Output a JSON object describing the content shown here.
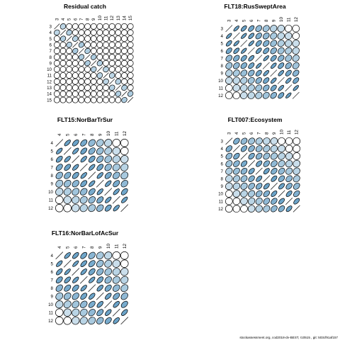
{
  "footer": "stockassessment.org, cod2018-dv-BEST, r10515 , git: 503cf91af157",
  "colors": {
    "fill": "#6ba3c8",
    "stroke": "#000000",
    "background": "#ffffff"
  },
  "chart_data": [
    {
      "type": "heatmap",
      "title": "Residual catch",
      "labels": [
        "3",
        "4",
        "5",
        "6",
        "7",
        "8",
        "9",
        "10",
        "11",
        "12",
        "13",
        "14",
        "15"
      ],
      "matrix": [
        [
          1.0,
          0.18,
          0.02,
          0.05,
          0.04,
          0.03,
          0.03,
          0.03,
          0.03,
          0.02,
          0.02,
          0.02,
          0.02
        ],
        [
          0.18,
          1.0,
          0.25,
          0.04,
          0.05,
          0.04,
          0.03,
          0.03,
          0.03,
          0.02,
          0.02,
          0.02,
          0.02
        ],
        [
          0.02,
          0.25,
          1.0,
          0.22,
          0.04,
          0.05,
          0.04,
          0.03,
          0.03,
          0.02,
          0.02,
          0.02,
          0.02
        ],
        [
          0.05,
          0.04,
          0.22,
          1.0,
          0.3,
          0.04,
          0.05,
          0.04,
          0.03,
          0.02,
          0.02,
          0.02,
          0.02
        ],
        [
          0.04,
          0.05,
          0.04,
          0.3,
          1.0,
          0.26,
          0.04,
          0.05,
          0.04,
          0.03,
          0.02,
          0.02,
          0.02
        ],
        [
          0.03,
          0.04,
          0.05,
          0.04,
          0.26,
          1.0,
          0.28,
          0.04,
          0.05,
          0.04,
          0.03,
          0.02,
          0.02
        ],
        [
          0.03,
          0.03,
          0.04,
          0.05,
          0.04,
          0.28,
          1.0,
          0.24,
          0.04,
          0.05,
          0.04,
          0.03,
          0.02
        ],
        [
          0.03,
          0.03,
          0.03,
          0.04,
          0.05,
          0.04,
          0.24,
          1.0,
          0.2,
          0.04,
          0.05,
          0.04,
          0.03
        ],
        [
          0.03,
          0.03,
          0.03,
          0.03,
          0.04,
          0.05,
          0.04,
          0.2,
          1.0,
          0.18,
          0.04,
          0.05,
          0.04
        ],
        [
          0.02,
          0.02,
          0.02,
          0.02,
          0.03,
          0.04,
          0.05,
          0.04,
          0.18,
          1.0,
          0.22,
          0.04,
          0.05
        ],
        [
          0.02,
          0.02,
          0.02,
          0.02,
          0.02,
          0.03,
          0.04,
          0.05,
          0.04,
          0.22,
          1.0,
          0.25,
          0.04
        ],
        [
          0.02,
          0.02,
          0.02,
          0.02,
          0.02,
          0.02,
          0.03,
          0.04,
          0.05,
          0.04,
          0.25,
          1.0,
          0.28
        ],
        [
          0.02,
          0.02,
          0.02,
          0.02,
          0.02,
          0.02,
          0.02,
          0.03,
          0.04,
          0.05,
          0.04,
          0.28,
          1.0
        ]
      ]
    },
    {
      "type": "heatmap",
      "title": "FLT18:RusSweptArea",
      "labels": [
        "3",
        "4",
        "5",
        "6",
        "7",
        "8",
        "9",
        "10",
        "11",
        "12"
      ],
      "matrix": [
        [
          1.0,
          0.85,
          0.75,
          0.65,
          0.45,
          0.35,
          0.2,
          0.1,
          0.05,
          0.0
        ],
        [
          0.85,
          1.0,
          0.85,
          0.75,
          0.55,
          0.45,
          0.3,
          0.15,
          0.1,
          0.05
        ],
        [
          0.75,
          0.85,
          1.0,
          0.85,
          0.65,
          0.55,
          0.4,
          0.25,
          0.15,
          0.1
        ],
        [
          0.65,
          0.75,
          0.85,
          1.0,
          0.75,
          0.65,
          0.5,
          0.35,
          0.25,
          0.15
        ],
        [
          0.45,
          0.55,
          0.65,
          0.75,
          1.0,
          0.85,
          0.65,
          0.5,
          0.35,
          0.25
        ],
        [
          0.35,
          0.45,
          0.55,
          0.65,
          0.85,
          1.0,
          0.8,
          0.65,
          0.5,
          0.35
        ],
        [
          0.2,
          0.3,
          0.4,
          0.5,
          0.65,
          0.8,
          1.0,
          0.8,
          0.65,
          0.5
        ],
        [
          0.1,
          0.15,
          0.25,
          0.35,
          0.5,
          0.65,
          0.8,
          1.0,
          0.8,
          0.65
        ],
        [
          0.05,
          0.1,
          0.15,
          0.25,
          0.35,
          0.5,
          0.65,
          0.8,
          1.0,
          0.85
        ],
        [
          0.0,
          0.05,
          0.1,
          0.15,
          0.25,
          0.35,
          0.5,
          0.65,
          0.85,
          1.0
        ]
      ]
    },
    {
      "type": "heatmap",
      "title": "FLT15:NorBarTrSur",
      "labels": [
        "4",
        "5",
        "6",
        "7",
        "8",
        "9",
        "10",
        "11",
        "12"
      ],
      "matrix": [
        [
          1.0,
          0.8,
          0.7,
          0.6,
          0.45,
          0.3,
          0.15,
          0.05,
          0.0
        ],
        [
          0.8,
          1.0,
          0.8,
          0.7,
          0.55,
          0.4,
          0.25,
          0.1,
          0.05
        ],
        [
          0.7,
          0.8,
          1.0,
          0.8,
          0.65,
          0.5,
          0.35,
          0.2,
          0.1
        ],
        [
          0.6,
          0.7,
          0.8,
          1.0,
          0.8,
          0.65,
          0.45,
          0.3,
          0.2
        ],
        [
          0.45,
          0.55,
          0.65,
          0.8,
          1.0,
          0.8,
          0.6,
          0.45,
          0.3
        ],
        [
          0.3,
          0.4,
          0.5,
          0.65,
          0.8,
          1.0,
          0.8,
          0.6,
          0.45
        ],
        [
          0.15,
          0.25,
          0.35,
          0.45,
          0.6,
          0.8,
          1.0,
          0.8,
          0.65
        ],
        [
          0.05,
          0.1,
          0.2,
          0.3,
          0.45,
          0.6,
          0.8,
          1.0,
          0.8
        ],
        [
          0.0,
          0.05,
          0.1,
          0.2,
          0.3,
          0.45,
          0.65,
          0.8,
          1.0
        ]
      ]
    },
    {
      "type": "heatmap",
      "title": "FLT007:Ecosystem",
      "labels": [
        "3",
        "4",
        "5",
        "6",
        "7",
        "8",
        "9",
        "10",
        "11",
        "12"
      ],
      "matrix": [
        [
          1.0,
          0.55,
          0.45,
          0.35,
          0.25,
          0.15,
          0.1,
          0.05,
          0.02,
          0.0
        ],
        [
          0.55,
          1.0,
          0.6,
          0.5,
          0.4,
          0.3,
          0.2,
          0.1,
          0.05,
          0.02
        ],
        [
          0.45,
          0.6,
          1.0,
          0.6,
          0.5,
          0.4,
          0.3,
          0.2,
          0.1,
          0.05
        ],
        [
          0.35,
          0.5,
          0.6,
          1.0,
          0.65,
          0.55,
          0.45,
          0.3,
          0.2,
          0.1
        ],
        [
          0.25,
          0.4,
          0.5,
          0.65,
          1.0,
          0.7,
          0.55,
          0.45,
          0.3,
          0.2
        ],
        [
          0.15,
          0.3,
          0.4,
          0.55,
          0.7,
          1.0,
          0.7,
          0.55,
          0.45,
          0.3
        ],
        [
          0.1,
          0.2,
          0.3,
          0.45,
          0.55,
          0.7,
          1.0,
          0.7,
          0.55,
          0.45
        ],
        [
          0.05,
          0.1,
          0.2,
          0.3,
          0.45,
          0.55,
          0.7,
          1.0,
          0.7,
          0.55
        ],
        [
          0.02,
          0.05,
          0.1,
          0.2,
          0.3,
          0.45,
          0.55,
          0.7,
          1.0,
          0.7
        ],
        [
          0.0,
          0.02,
          0.05,
          0.1,
          0.2,
          0.3,
          0.45,
          0.55,
          0.7,
          1.0
        ]
      ]
    },
    {
      "type": "heatmap",
      "title": "FLT16:NorBarLofAcSur",
      "labels": [
        "4",
        "5",
        "6",
        "7",
        "8",
        "9",
        "10",
        "11",
        "12"
      ],
      "matrix": [
        [
          1.0,
          0.8,
          0.75,
          0.65,
          0.5,
          0.3,
          0.15,
          0.05,
          0.0
        ],
        [
          0.8,
          1.0,
          0.85,
          0.75,
          0.6,
          0.4,
          0.25,
          0.1,
          0.05
        ],
        [
          0.75,
          0.85,
          1.0,
          0.8,
          0.65,
          0.5,
          0.35,
          0.2,
          0.1
        ],
        [
          0.65,
          0.75,
          0.8,
          1.0,
          0.8,
          0.65,
          0.45,
          0.3,
          0.2
        ],
        [
          0.5,
          0.6,
          0.65,
          0.8,
          1.0,
          0.75,
          0.6,
          0.45,
          0.3
        ],
        [
          0.3,
          0.4,
          0.5,
          0.65,
          0.75,
          1.0,
          0.75,
          0.6,
          0.45
        ],
        [
          0.15,
          0.25,
          0.35,
          0.45,
          0.6,
          0.75,
          1.0,
          0.75,
          0.6
        ],
        [
          0.05,
          0.1,
          0.2,
          0.3,
          0.45,
          0.6,
          0.75,
          1.0,
          0.75
        ],
        [
          0.0,
          0.05,
          0.1,
          0.2,
          0.3,
          0.45,
          0.6,
          0.75,
          1.0
        ]
      ]
    }
  ]
}
